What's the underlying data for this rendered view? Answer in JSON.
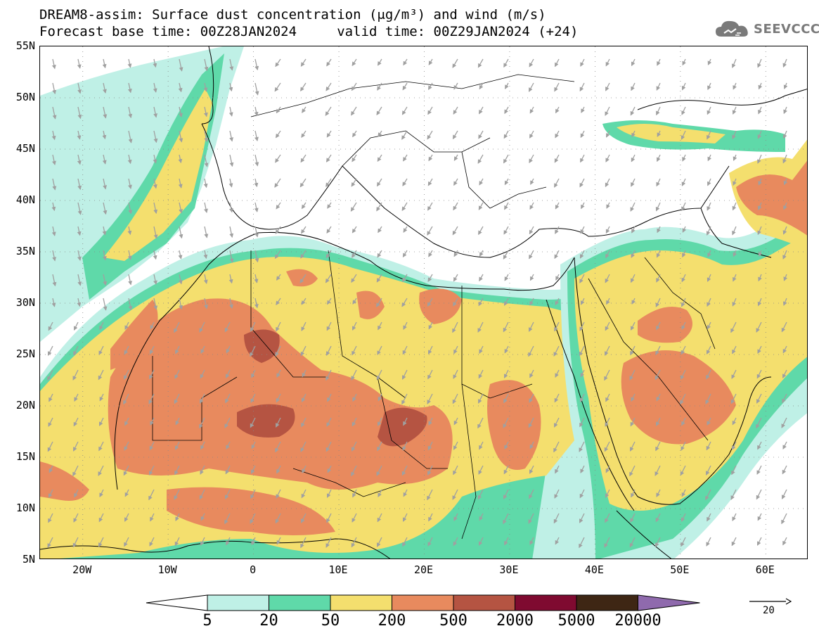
{
  "title_line1": "DREAM8-assim: Surface dust concentration (μg/m³) and wind (m/s)",
  "title_line2": "Forecast base time: 00Z28JAN2024     valid time: 00Z29JAN2024 (+24)",
  "logo": {
    "text": "SEEVCCC",
    "icon": "cloud-logo-icon",
    "color": "#7a7a7a"
  },
  "map": {
    "lon_range": [
      -25,
      65
    ],
    "lat_range": [
      5,
      55
    ],
    "lat_ticks": [
      "55N",
      "50N",
      "45N",
      "40N",
      "35N",
      "30N",
      "25N",
      "20N",
      "15N",
      "10N",
      "5N"
    ],
    "lon_ticks": [
      "20W",
      "10W",
      "0",
      "10E",
      "20E",
      "30E",
      "40E",
      "50E",
      "60E"
    ],
    "wind_vector_color": "#a0a0a0"
  },
  "colorbar": {
    "labels": [
      "5",
      "20",
      "50",
      "200",
      "500",
      "2000",
      "5000",
      "20000"
    ],
    "colors": [
      "#bff0e6",
      "#5fd9a9",
      "#f4df6e",
      "#e88a5e",
      "#b55442",
      "#7f0a30",
      "#3e2614",
      "#8f6aad"
    ]
  },
  "reference_vector": {
    "label": "20"
  }
}
